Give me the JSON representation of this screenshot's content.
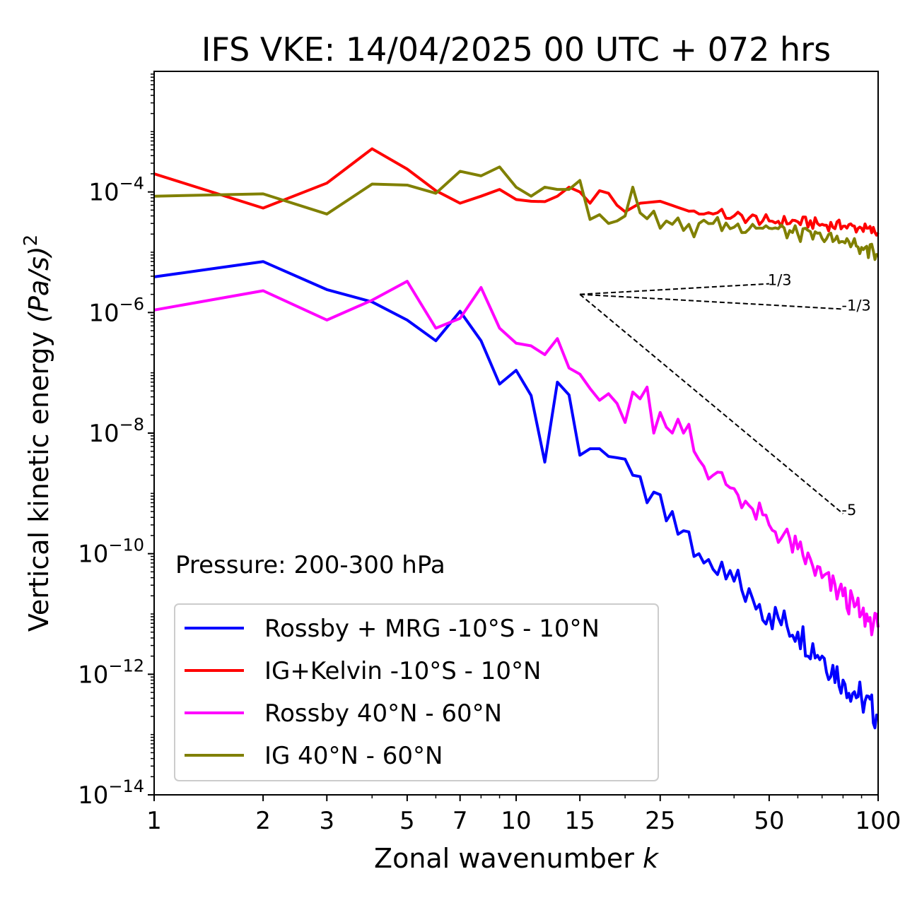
{
  "chart_data": {
    "type": "line",
    "title": "IFS VKE: 14/04/2025 00 UTC + 072 hrs",
    "xlabel": "Zonal wavenumber",
    "xlabel_var": "k",
    "ylabel": "Vertical kinetic energy",
    "ylabel_unit_var": "(Pa/s)",
    "ylabel_unit_exp": "2",
    "xscale": "log",
    "yscale": "log",
    "xlim": [
      1,
      100
    ],
    "ylim": [
      1e-14,
      0.01
    ],
    "xticks": [
      1,
      2,
      3,
      5,
      7,
      10,
      15,
      25,
      50,
      100
    ],
    "xtick_labels": [
      "1",
      "2",
      "3",
      "5",
      "7",
      "10",
      "15",
      "25",
      "50",
      "100"
    ],
    "yticks": [
      {
        "value": 1e-14,
        "base": "10",
        "exp": "−14"
      },
      {
        "value": 1e-12,
        "base": "10",
        "exp": "−12"
      },
      {
        "value": 1e-10,
        "base": "10",
        "exp": "−10"
      },
      {
        "value": 1e-08,
        "base": "10",
        "exp": "−8"
      },
      {
        "value": 1e-06,
        "base": "10",
        "exp": "−6"
      },
      {
        "value": 0.0001,
        "base": "10",
        "exp": "−4"
      }
    ],
    "annotation": "Pressure: 200-300 hPa",
    "legend_position": "lower-left",
    "grid": false,
    "reference_slopes": [
      {
        "label": "1/3",
        "x0": 15,
        "y0": 2e-06,
        "x1": 50,
        "y1": 3e-06
      },
      {
        "label": "-1/3",
        "x0": 15,
        "y0": 2e-06,
        "x1": 80,
        "y1": 1.14e-06
      },
      {
        "label": "-5",
        "x0": 15,
        "y0": 2e-06,
        "x1": 80,
        "y1": 4.6e-10
      }
    ],
    "series": [
      {
        "name": "Rossby + MRG -10°S - 10°N",
        "color": "#0000ff",
        "anchors": [
          [
            1,
            3.9e-06
          ],
          [
            2,
            7e-06
          ],
          [
            3,
            2.4e-06
          ],
          [
            4,
            1.5e-06
          ],
          [
            5,
            7.5e-07
          ],
          [
            6,
            3.4e-07
          ],
          [
            7,
            1.05e-06
          ],
          [
            8,
            3.4e-07
          ],
          [
            9,
            6.5e-08
          ],
          [
            10,
            1.1e-07
          ],
          [
            11,
            4.2e-08
          ],
          [
            12,
            3.3e-09
          ],
          [
            13,
            7e-08
          ],
          [
            14,
            4.3e-08
          ],
          [
            15,
            4.3e-09
          ],
          [
            16,
            5.5e-09
          ],
          [
            17,
            5.5e-09
          ],
          [
            18,
            4.1e-09
          ],
          [
            19,
            3.9e-09
          ],
          [
            20,
            3.7e-09
          ],
          [
            21,
            2e-09
          ],
          [
            22,
            1.9e-09
          ],
          [
            23,
            7e-10
          ],
          [
            24,
            1.05e-09
          ],
          [
            25,
            9.5e-10
          ],
          [
            26,
            3.5e-10
          ],
          [
            27,
            5e-10
          ],
          [
            28,
            2.1e-10
          ],
          [
            29,
            2.4e-10
          ],
          [
            30,
            2.3e-10
          ],
          [
            31,
            9e-11
          ],
          [
            32,
            1e-10
          ],
          [
            33,
            7e-11
          ],
          [
            34,
            8e-11
          ],
          [
            35,
            5.5e-11
          ],
          [
            36,
            4.5e-11
          ],
          [
            40,
            3.5e-11
          ],
          [
            45,
            1.8e-11
          ],
          [
            50,
            1e-11
          ],
          [
            60,
            5e-12
          ],
          [
            70,
            2e-12
          ],
          [
            80,
            8e-13
          ],
          [
            90,
            4e-13
          ],
          [
            100,
            2e-13
          ]
        ]
      },
      {
        "name": "IG+Kelvin -10°S - 10°N",
        "color": "#ff0000",
        "anchors": [
          [
            1,
            0.0002
          ],
          [
            2,
            5.4e-05
          ],
          [
            3,
            0.00014
          ],
          [
            4,
            0.00052
          ],
          [
            5,
            0.00024
          ],
          [
            6,
            0.000105
          ],
          [
            7,
            6.5e-05
          ],
          [
            8,
            8.5e-05
          ],
          [
            9,
            0.00011
          ],
          [
            10,
            7.5e-05
          ],
          [
            11,
            7e-05
          ],
          [
            12,
            6.9e-05
          ],
          [
            13,
            8.5e-05
          ],
          [
            14,
            0.00012
          ],
          [
            15,
            0.0001
          ],
          [
            16,
            6.5e-05
          ],
          [
            17,
            0.000105
          ],
          [
            18,
            9.5e-05
          ],
          [
            19,
            6e-05
          ],
          [
            20,
            4.7e-05
          ],
          [
            22,
            6.5e-05
          ],
          [
            25,
            7e-05
          ],
          [
            30,
            4.8e-05
          ],
          [
            35,
            4.3e-05
          ],
          [
            40,
            4e-05
          ],
          [
            50,
            3.3e-05
          ],
          [
            60,
            3.2e-05
          ],
          [
            70,
            2.9e-05
          ],
          [
            80,
            2.7e-05
          ],
          [
            90,
            2.5e-05
          ],
          [
            100,
            2.1e-05
          ]
        ]
      },
      {
        "name": "Rossby 40°N - 60°N",
        "color": "#ff00ff",
        "anchors": [
          [
            1,
            1.1e-06
          ],
          [
            2,
            2.3e-06
          ],
          [
            3,
            7.5e-07
          ],
          [
            4,
            1.6e-06
          ],
          [
            5,
            3.3e-06
          ],
          [
            6,
            5.5e-07
          ],
          [
            7,
            8e-07
          ],
          [
            8,
            2.6e-06
          ],
          [
            9,
            5.5e-07
          ],
          [
            10,
            3.1e-07
          ],
          [
            11,
            2.8e-07
          ],
          [
            12,
            2e-07
          ],
          [
            13,
            3.7e-07
          ],
          [
            14,
            1.2e-07
          ],
          [
            15,
            9.5e-08
          ],
          [
            16,
            5.5e-08
          ],
          [
            17,
            3.5e-08
          ],
          [
            18,
            4.5e-08
          ],
          [
            19,
            3.1e-08
          ],
          [
            20,
            1.5e-08
          ],
          [
            21,
            4.8e-08
          ],
          [
            22,
            3.7e-08
          ],
          [
            23,
            5.8e-08
          ],
          [
            24,
            1e-08
          ],
          [
            25,
            2.2e-08
          ],
          [
            26,
            1.25e-08
          ],
          [
            27,
            1e-08
          ],
          [
            28,
            1.7e-08
          ],
          [
            29,
            1e-08
          ],
          [
            30,
            1.4e-08
          ],
          [
            31,
            5e-09
          ],
          [
            32,
            3.6e-09
          ],
          [
            33,
            2.8e-09
          ],
          [
            35,
            2e-09
          ],
          [
            40,
            1.2e-09
          ],
          [
            45,
            5.5e-10
          ],
          [
            50,
            3e-10
          ],
          [
            60,
            1.2e-10
          ],
          [
            70,
            4e-11
          ],
          [
            80,
            2e-11
          ],
          [
            90,
            1e-11
          ],
          [
            100,
            6e-12
          ]
        ]
      },
      {
        "name": "IG 40°N - 60°N",
        "color": "#808000",
        "anchors": [
          [
            1,
            8.5e-05
          ],
          [
            2,
            9.3e-05
          ],
          [
            3,
            4.3e-05
          ],
          [
            4,
            0.000135
          ],
          [
            5,
            0.00013
          ],
          [
            6,
            9.5e-05
          ],
          [
            7,
            0.00022
          ],
          [
            8,
            0.000185
          ],
          [
            9,
            0.00026
          ],
          [
            10,
            0.00012
          ],
          [
            11,
            8.5e-05
          ],
          [
            12,
            0.00012
          ],
          [
            13,
            0.00011
          ],
          [
            14,
            0.00011
          ],
          [
            15,
            0.000155
          ],
          [
            16,
            3.5e-05
          ],
          [
            17,
            4.2e-05
          ],
          [
            18,
            3e-05
          ],
          [
            19,
            3.3e-05
          ],
          [
            20,
            4e-05
          ],
          [
            21,
            0.00012
          ],
          [
            22,
            4.5e-05
          ],
          [
            23,
            3.6e-05
          ],
          [
            24,
            4.8e-05
          ],
          [
            25,
            2.5e-05
          ],
          [
            26,
            3.3e-05
          ],
          [
            27,
            2.9e-05
          ],
          [
            28,
            3.7e-05
          ],
          [
            29,
            2.3e-05
          ],
          [
            30,
            2.9e-05
          ],
          [
            31,
            1.8e-05
          ],
          [
            32,
            3e-05
          ],
          [
            33,
            3.4e-05
          ],
          [
            35,
            3e-05
          ],
          [
            40,
            2.6e-05
          ],
          [
            45,
            2.9e-05
          ],
          [
            50,
            2.5e-05
          ],
          [
            60,
            2e-05
          ],
          [
            70,
            1.7e-05
          ],
          [
            80,
            1.5e-05
          ],
          [
            90,
            1.2e-05
          ],
          [
            100,
            9e-06
          ]
        ]
      }
    ]
  }
}
